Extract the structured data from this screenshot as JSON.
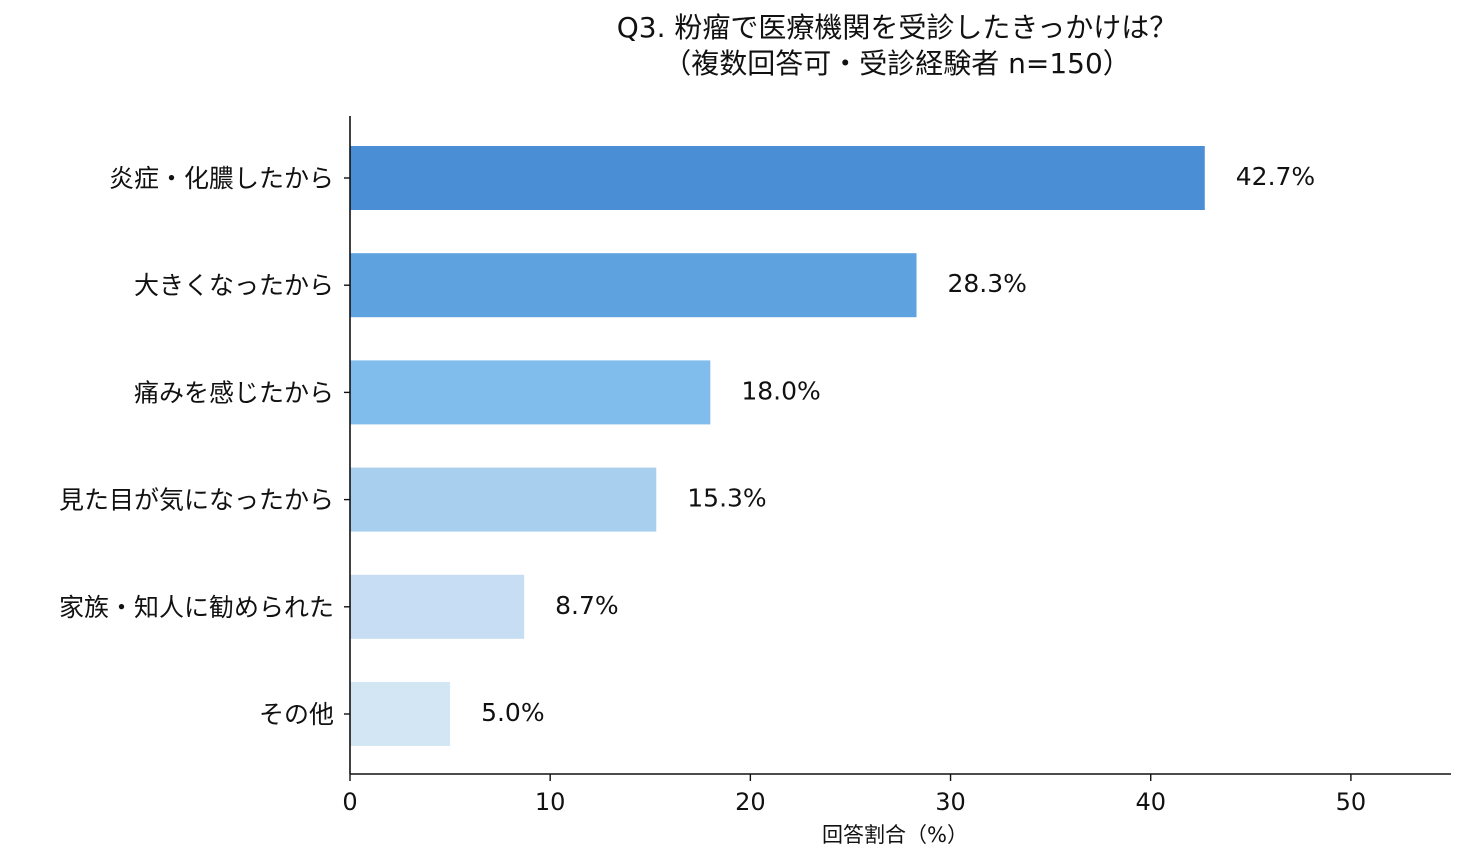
{
  "chart_data": {
    "type": "bar",
    "orientation": "horizontal",
    "title": "Q3. 粉瘤で医療機関を受診したきっかけは？",
    "subtitle": "（複数回答可・受診経験者 n=150）",
    "xlabel": "回答割合（%）",
    "ylabel": "",
    "xlim": [
      0,
      55
    ],
    "xticks": [
      0,
      10,
      20,
      30,
      40,
      50
    ],
    "grid": false,
    "categories": [
      "炎症・化膿したから",
      "大きくなったから",
      "痛みを感じたから",
      "見た目が気になったから",
      "家族・知人に勧められた",
      "その他"
    ],
    "values": [
      42.7,
      28.3,
      18.0,
      15.3,
      8.7,
      5.0
    ],
    "value_labels": [
      "42.7%",
      "28.3%",
      "18.0%",
      "15.3%",
      "8.7%",
      "5.0%"
    ],
    "colors": [
      "#4a8fd6",
      "#5ea3e0",
      "#80bdec",
      "#a9cfef",
      "#c6ddf4",
      "#d2e6f4"
    ]
  }
}
